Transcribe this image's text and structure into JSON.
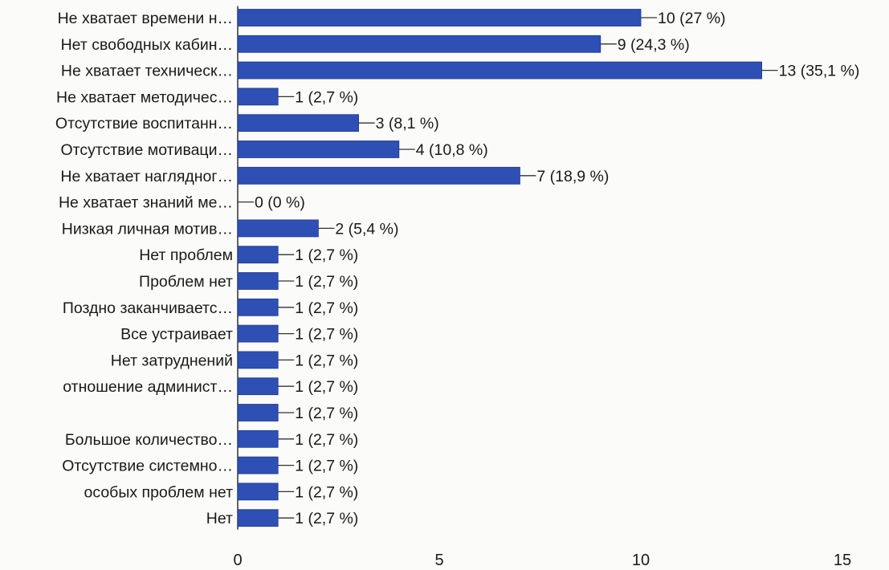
{
  "chart_data": {
    "type": "bar",
    "orientation": "horizontal",
    "categories": [
      "Не хватает времени н…",
      "Нет свободных кабин…",
      "Не хватает техническ…",
      "Не хватает методичес…",
      "Отсутствие воспитанн…",
      "Отсутствие мотиваци…",
      "Не хватает наглядног…",
      "Не хватает знаний ме…",
      "Низкая личная мотив…",
      "Нет проблем",
      "Проблем нет",
      "Поздно заканчиваетс…",
      "Все устраивает",
      "Нет затруднений",
      "отношение админист…",
      "",
      "Большое количество…",
      "Отсутствие системно…",
      "особых проблем нет",
      "Нет"
    ],
    "values": [
      10,
      9,
      13,
      1,
      3,
      4,
      7,
      0,
      2,
      1,
      1,
      1,
      1,
      1,
      1,
      1,
      1,
      1,
      1,
      1
    ],
    "data_labels": [
      "10 (27 %)",
      "9 (24,3 %)",
      "13 (35,1 %)",
      "1 (2,7 %)",
      "3 (8,1 %)",
      "4 (10,8 %)",
      "7 (18,9 %)",
      "0 (0 %)",
      "2 (5,4 %)",
      "1 (2,7 %)",
      "1 (2,7 %)",
      "1 (2,7 %)",
      "1 (2,7 %)",
      "1 (2,7 %)",
      "1 (2,7 %)",
      "1 (2,7 %)",
      "1 (2,7 %)",
      "1 (2,7 %)",
      "1 (2,7 %)",
      "1 (2,7 %)"
    ],
    "x_ticks": [
      "0",
      "5",
      "10",
      "15"
    ],
    "xlim": [
      0,
      15
    ],
    "bar_color": "#2e4fb4",
    "grid": false,
    "legend": "none"
  }
}
